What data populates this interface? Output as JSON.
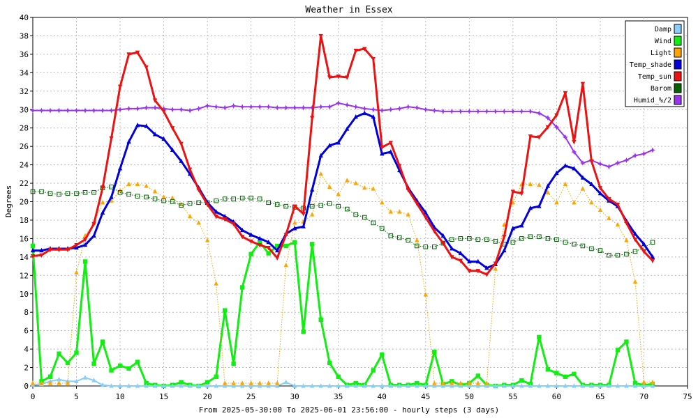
{
  "chart_data": {
    "type": "line",
    "title": "Weather in Essex",
    "xlabel": "From 2025-05-30:00 To 2025-06-01 23:56:00 - hourly steps (3 days)",
    "ylabel": "Degrees",
    "xlim": [
      0,
      75
    ],
    "ylim": [
      0,
      40
    ],
    "x_ticks": [
      "0",
      "5",
      "10",
      "15",
      "20",
      "25",
      "30",
      "35",
      "40",
      "45",
      "50",
      "55",
      "60",
      "65",
      "70",
      "75"
    ],
    "y_ticks": [
      "0",
      "2",
      "4",
      "6",
      "8",
      "10",
      "12",
      "14",
      "16",
      "18",
      "20",
      "22",
      "24",
      "26",
      "28",
      "30",
      "32",
      "34",
      "36",
      "38",
      "40"
    ],
    "grid": true,
    "legend_position": "top-right",
    "series": [
      {
        "name": "Damp",
        "color": "#87cefa",
        "marker": "triangle-up",
        "style": "solid",
        "width": 2,
        "values": [
          0.1,
          0.2,
          0.5,
          0.7,
          0.5,
          0.5,
          0.9,
          0.6,
          0.1,
          0,
          0,
          0,
          0,
          0,
          0,
          0,
          0,
          0,
          0,
          0,
          0,
          0,
          0,
          0,
          0,
          0,
          0,
          0,
          0,
          0.4,
          0,
          0,
          0,
          0,
          0,
          0,
          0,
          0,
          0,
          0,
          0,
          0,
          0,
          0,
          0,
          0,
          0,
          0,
          0,
          0,
          0,
          0,
          0,
          0,
          0,
          0,
          0,
          0,
          0,
          0,
          0,
          0,
          0,
          0,
          0,
          0,
          0,
          0,
          0,
          0,
          0,
          0
        ]
      },
      {
        "name": "Wind",
        "color": "#11ee11",
        "marker": "square",
        "style": "solid",
        "width": 3,
        "values": [
          15.2,
          0.5,
          1,
          3.5,
          2.5,
          3.6,
          13.5,
          2.4,
          4.8,
          1.7,
          2.2,
          1.9,
          2.6,
          0.3,
          0.1,
          0,
          0.1,
          0.4,
          0.1,
          0,
          0.4,
          1,
          8.2,
          2.4,
          10.7,
          14.3,
          15.6,
          14.4,
          15.2,
          15.2,
          15.6,
          5.9,
          15.4,
          7.2,
          2.5,
          1,
          0.1,
          0.3,
          0.1,
          1.7,
          3.4,
          0.1,
          0.1,
          0.1,
          0.3,
          0.1,
          3.7,
          0.2,
          0.5,
          0.1,
          0.3,
          1.1,
          0.1,
          0,
          0.1,
          0.1,
          0.6,
          0.2,
          5.3,
          1.8,
          1.4,
          1,
          1.3,
          0.1,
          0.1,
          0.1,
          0.1,
          3.9,
          4.8,
          0.3,
          0.1,
          0.2
        ]
      },
      {
        "name": "Light",
        "color": "#ffa500",
        "marker": "triangle-up",
        "style": "dotted",
        "width": 1,
        "values": [
          0.3,
          0.3,
          0.3,
          0.3,
          0.3,
          12.3,
          16.3,
          17.7,
          19.9,
          20.1,
          21.2,
          21.9,
          21.9,
          21.7,
          21.1,
          20.5,
          20.4,
          19.7,
          18.4,
          17.7,
          15.8,
          11.1,
          0.3,
          0.3,
          0.3,
          0.3,
          0.3,
          0.3,
          0.3,
          13.1,
          17.7,
          17.8,
          18.6,
          23,
          21.6,
          20.8,
          22.3,
          22,
          21.5,
          21.4,
          19.9,
          18.9,
          18.9,
          18.6,
          15.8,
          9.9,
          0.3,
          0.3,
          0.3,
          0.3,
          0.3,
          0.3,
          0.3,
          12.7,
          17.5,
          19.9,
          21.9,
          21.9,
          21.8,
          21,
          19.9,
          21.9,
          19.9,
          21.4,
          19.9,
          19.1,
          18.2,
          17.5,
          15.8,
          11.3,
          0.4,
          0.4
        ]
      },
      {
        "name": "Temp_shade",
        "color": "#0000dd",
        "marker": "triangle-up",
        "style": "solid",
        "width": 3,
        "values": [
          14.7,
          14.7,
          14.9,
          14.9,
          14.9,
          15,
          15.3,
          16.3,
          18.8,
          20.5,
          23.6,
          26.5,
          28.3,
          28.2,
          27.3,
          26.8,
          25.6,
          24.4,
          23,
          21.5,
          19.9,
          18.9,
          18.4,
          17.8,
          16.9,
          16.4,
          16,
          15.6,
          14.7,
          16.5,
          17.1,
          17.3,
          21.3,
          25,
          26.1,
          26.4,
          27.9,
          29.2,
          29.6,
          29.2,
          25.2,
          25.4,
          23.4,
          21.5,
          20.1,
          18.8,
          17.2,
          16.3,
          14.9,
          14.4,
          13.5,
          13.5,
          12.8,
          13.2,
          14.7,
          17.1,
          17.4,
          19.3,
          19.5,
          21.7,
          23.1,
          23.9,
          23.6,
          22.6,
          21.9,
          20.9,
          20.1,
          19.5,
          17.9,
          16.5,
          15.4,
          14
        ]
      },
      {
        "name": "Temp_sun",
        "color": "#ee1111",
        "marker": "triangle-down",
        "style": "solid",
        "width": 3,
        "values": [
          14.1,
          14.2,
          14.8,
          14.8,
          14.8,
          15.3,
          15.9,
          17.6,
          21.5,
          26.9,
          32.5,
          36,
          36.2,
          34.6,
          31,
          29.8,
          28,
          26.3,
          23.5,
          21.3,
          19.7,
          18.4,
          18.1,
          17.6,
          16.2,
          15.7,
          15.3,
          15,
          13.9,
          16.4,
          19.5,
          18.7,
          29.1,
          38,
          33.5,
          33.6,
          33.5,
          36.4,
          36.6,
          35.5,
          25.9,
          26.4,
          23.9,
          21.3,
          19.8,
          18.3,
          16.8,
          15.5,
          14,
          13.6,
          12.5,
          12.5,
          12.1,
          13.3,
          16.2,
          21.1,
          20.9,
          27.1,
          27,
          28.1,
          29.4,
          31.8,
          26.5,
          32.8,
          24.4,
          21.5,
          20.3,
          19.7,
          17.7,
          15.9,
          14.6,
          13.6
        ]
      },
      {
        "name": "Barom",
        "color": "#006400",
        "marker": "square-open",
        "style": "dotted",
        "width": 1,
        "values": [
          21.1,
          21.1,
          20.9,
          20.8,
          20.9,
          20.9,
          21,
          21,
          21.5,
          21.6,
          21,
          20.8,
          20.6,
          20.5,
          20.3,
          20.1,
          20,
          19.6,
          19.8,
          19.9,
          19.9,
          20.1,
          20.3,
          20.3,
          20.4,
          20.4,
          20.3,
          19.9,
          19.7,
          19.5,
          19.4,
          19.3,
          19.5,
          19.6,
          19.8,
          19.5,
          19.2,
          18.6,
          18.3,
          17.7,
          17.1,
          16.3,
          16.1,
          15.8,
          15.2,
          15.1,
          15.1,
          15.5,
          15.9,
          16,
          16,
          15.9,
          15.9,
          15.7,
          15.4,
          15.6,
          16,
          16.2,
          16.2,
          16,
          15.9,
          15.6,
          15.4,
          15.2,
          14.9,
          14.7,
          14.2,
          14.2,
          14.3,
          14.6,
          15,
          15.6
        ]
      },
      {
        "name": "Humid_%/2",
        "color": "#9933ee",
        "marker": "star",
        "style": "solid",
        "width": 2,
        "values": [
          29.9,
          29.9,
          29.9,
          29.9,
          29.9,
          29.9,
          29.9,
          29.9,
          29.9,
          29.9,
          30,
          30.1,
          30.1,
          30.2,
          30.2,
          30.1,
          30,
          30,
          29.9,
          30.1,
          30.4,
          30.3,
          30.2,
          30.4,
          30.3,
          30.3,
          30.3,
          30.3,
          30.2,
          30.2,
          30.2,
          30.2,
          30.2,
          30.3,
          30.3,
          30.7,
          30.5,
          30.3,
          30.1,
          30,
          29.9,
          30,
          30.1,
          30.3,
          30.2,
          30,
          29.9,
          29.8,
          29.8,
          29.8,
          29.8,
          29.8,
          29.8,
          29.8,
          29.8,
          29.8,
          29.8,
          29.8,
          29.6,
          29.1,
          28.1,
          27,
          25.4,
          24.2,
          24.5,
          24.1,
          23.8,
          24.2,
          24.5,
          25,
          25.2,
          25.6
        ]
      }
    ]
  }
}
